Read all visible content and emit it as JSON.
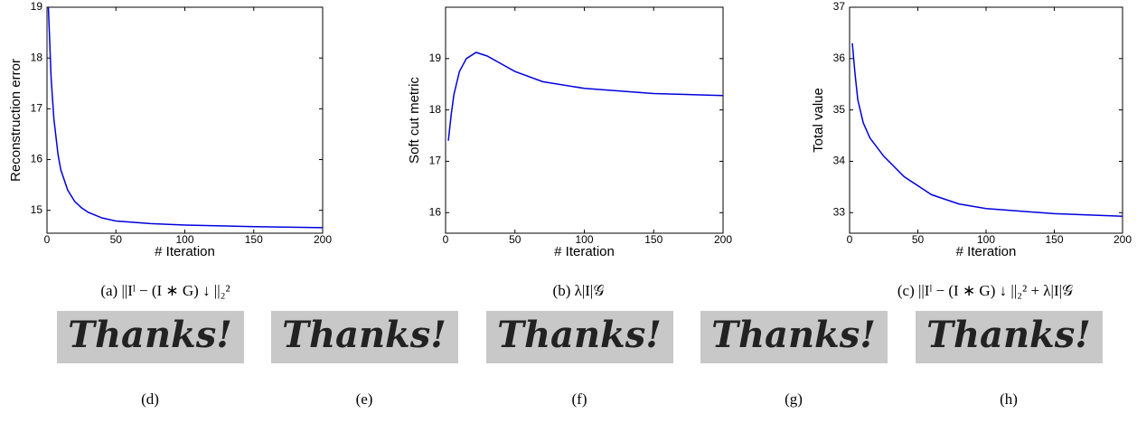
{
  "chart_data": [
    {
      "type": "line",
      "xlabel": "# Iteration",
      "ylabel": "Reconstruction error",
      "caption": "(a) ||Iˡ − (I ∗ G) ↓ ||₂²",
      "x": [
        1,
        3,
        5,
        8,
        10,
        15,
        20,
        25,
        30,
        40,
        50,
        75,
        100,
        150,
        200
      ],
      "series": [
        {
          "color": "#0000e0",
          "values": [
            19.0,
            17.6,
            16.8,
            16.1,
            15.8,
            15.4,
            15.18,
            15.05,
            14.96,
            14.85,
            14.79,
            14.74,
            14.71,
            14.68,
            14.66
          ]
        }
      ],
      "xlim": [
        0,
        200
      ],
      "xticks": [
        0,
        50,
        100,
        150,
        200
      ],
      "ylim": [
        14.55,
        19.0
      ],
      "yticks": [
        15,
        16,
        17,
        18,
        19
      ]
    },
    {
      "type": "line",
      "xlabel": "# Iteration",
      "ylabel": "Soft cut metric",
      "caption": "(b) λ|I|𝒢",
      "x": [
        2,
        4,
        6,
        10,
        15,
        22,
        30,
        40,
        50,
        70,
        100,
        150,
        200
      ],
      "series": [
        {
          "color": "#0000e0",
          "values": [
            17.4,
            17.9,
            18.3,
            18.75,
            19.0,
            19.12,
            19.05,
            18.9,
            18.75,
            18.55,
            18.42,
            18.32,
            18.28
          ]
        }
      ],
      "xlim": [
        0,
        200
      ],
      "xticks": [
        0,
        50,
        100,
        150,
        200
      ],
      "ylim": [
        15.6,
        20.0
      ],
      "yticks": [
        16,
        17,
        18,
        19
      ]
    },
    {
      "type": "line",
      "xlabel": "# Iteration",
      "ylabel": "Total value",
      "caption": "(c) ||Iˡ − (I ∗ G) ↓ ||₂² + λ|I|𝒢",
      "x": [
        2,
        4,
        6,
        10,
        15,
        25,
        40,
        60,
        80,
        100,
        150,
        200
      ],
      "series": [
        {
          "color": "#0000e0",
          "values": [
            36.3,
            35.7,
            35.2,
            34.75,
            34.45,
            34.1,
            33.7,
            33.35,
            33.17,
            33.08,
            32.98,
            32.93
          ]
        }
      ],
      "xlim": [
        0,
        200
      ],
      "xticks": [
        0,
        50,
        100,
        150,
        200
      ],
      "ylim": [
        32.6,
        37.0
      ],
      "yticks": [
        33,
        34,
        35,
        36,
        37
      ]
    }
  ],
  "images": [
    {
      "text": "Thanks!",
      "label": "(d)"
    },
    {
      "text": "Thanks!",
      "label": "(e)"
    },
    {
      "text": "Thanks!",
      "label": "(f)"
    },
    {
      "text": "Thanks!",
      "label": "(g)"
    },
    {
      "text": "Thanks!",
      "label": "(h)"
    }
  ]
}
